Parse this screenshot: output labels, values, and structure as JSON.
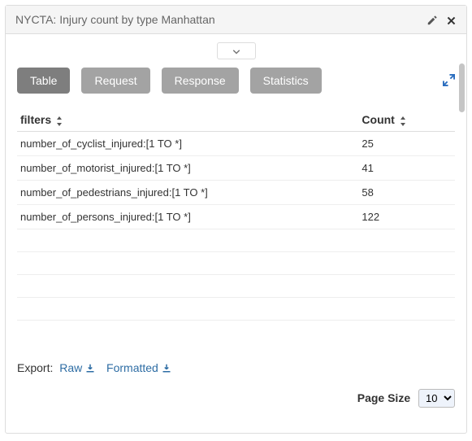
{
  "header": {
    "title": "NYCTA: Injury count by type Manhattan"
  },
  "tabs": {
    "items": [
      {
        "label": "Table",
        "active": true
      },
      {
        "label": "Request",
        "active": false
      },
      {
        "label": "Response",
        "active": false
      },
      {
        "label": "Statistics",
        "active": false
      }
    ]
  },
  "table": {
    "columns": {
      "filters": "filters",
      "count": "Count"
    },
    "rows": [
      {
        "filter": "number_of_cyclist_injured:[1 TO *]",
        "count": "25"
      },
      {
        "filter": "number_of_motorist_injured:[1 TO *]",
        "count": "41"
      },
      {
        "filter": "number_of_pedestrians_injured:[1 TO *]",
        "count": "58"
      },
      {
        "filter": "number_of_persons_injured:[1 TO *]",
        "count": "122"
      }
    ],
    "empty_row_count": 4
  },
  "export": {
    "label": "Export:",
    "raw": "Raw",
    "formatted": "Formatted"
  },
  "pager": {
    "label": "Page Size",
    "selected": "10",
    "options": [
      "10"
    ]
  },
  "colors": {
    "link": "#2e6da4",
    "btn": "#a3a3a3",
    "btn_active": "#7e7e7e",
    "header_bg": "#f5f5f5",
    "border": "#dddddd"
  }
}
